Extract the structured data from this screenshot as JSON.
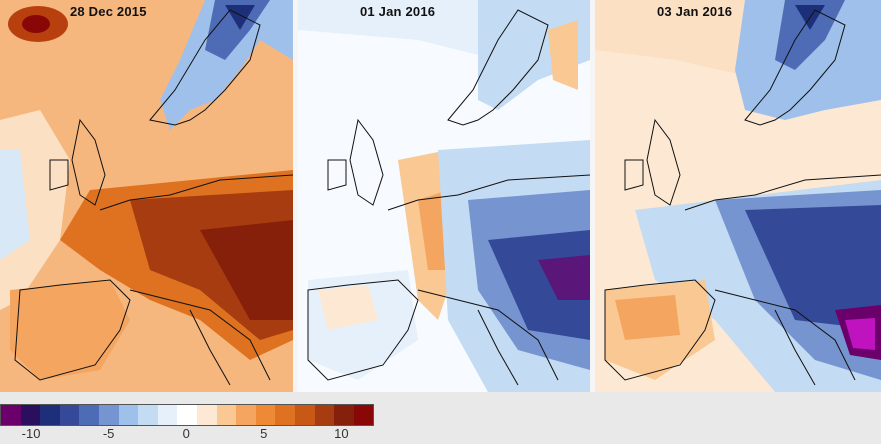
{
  "panels": [
    {
      "date": "28 Dec 2015",
      "anomaly": "warm"
    },
    {
      "date": "01 Jan 2016",
      "anomaly": "mixed"
    },
    {
      "date": "03 Jan 2016",
      "anomaly": "cold"
    }
  ],
  "colorbar": {
    "colors": [
      "#6b006b",
      "#2b0f5e",
      "#1e2f7a",
      "#344a98",
      "#4e6bb6",
      "#7694cf",
      "#9ec0ea",
      "#c3dbf3",
      "#e5f0fb",
      "#ffffff",
      "#fde9d3",
      "#f9c893",
      "#f4a55f",
      "#ee8a35",
      "#de7220",
      "#c85816",
      "#a63c10",
      "#86200b",
      "#8a0707"
    ],
    "ticks": [
      "-10",
      "-5",
      "0",
      "5",
      "10"
    ],
    "tick_values": [
      -10,
      -5,
      0,
      5,
      10
    ],
    "min": -12,
    "max": 12
  }
}
